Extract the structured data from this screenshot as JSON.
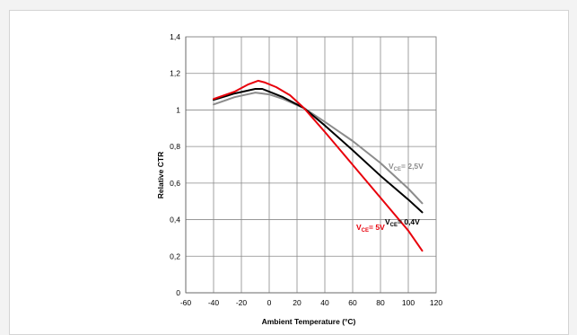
{
  "chart_data": {
    "type": "line",
    "title": "",
    "xlabel": "Ambient Temperature (°C)",
    "ylabel": "Relative CTR",
    "xlim": [
      -60,
      120
    ],
    "ylim": [
      0,
      1.4
    ],
    "x_ticks": [
      -60,
      -40,
      -20,
      0,
      20,
      40,
      60,
      80,
      100,
      120
    ],
    "x_tick_labels": [
      "-60",
      "-40",
      "-20",
      "0",
      "20",
      "40",
      "60",
      "80",
      "100",
      "120"
    ],
    "y_ticks": [
      0,
      0.2,
      0.4,
      0.6,
      0.8,
      1.0,
      1.2,
      1.4
    ],
    "y_tick_labels": [
      "0",
      "0,2",
      "0,4",
      "0,6",
      "0,8",
      "1",
      "1,2",
      "1,4"
    ],
    "grid": true,
    "legend": "none",
    "series": [
      {
        "name": "VCE= 2,5V",
        "label_main": "V",
        "label_sub": "CE",
        "label_rest": "= 2,5V",
        "color": "#8c8c8c",
        "x": [
          -40,
          -25,
          -10,
          0,
          10,
          25,
          40,
          60,
          80,
          100,
          110
        ],
        "y": [
          1.03,
          1.07,
          1.095,
          1.085,
          1.06,
          1.01,
          0.935,
          0.83,
          0.71,
          0.57,
          0.49
        ]
      },
      {
        "name": "VCE= 0,4V",
        "label_main": "V",
        "label_sub": "CE",
        "label_rest": "= 0,4V",
        "color": "#000000",
        "x": [
          -40,
          -25,
          -10,
          -5,
          0,
          10,
          25,
          40,
          60,
          80,
          100,
          110
        ],
        "y": [
          1.055,
          1.09,
          1.115,
          1.115,
          1.1,
          1.07,
          1.01,
          0.915,
          0.78,
          0.64,
          0.51,
          0.44
        ]
      },
      {
        "name": "VCE= 5V",
        "label_main": "V",
        "label_sub": "CE",
        "label_rest": "= 5V",
        "color": "#e8000b",
        "x": [
          -40,
          -25,
          -15,
          -8,
          -3,
          5,
          15,
          25,
          40,
          60,
          80,
          100,
          110
        ],
        "y": [
          1.06,
          1.1,
          1.14,
          1.16,
          1.15,
          1.125,
          1.08,
          1.01,
          0.88,
          0.7,
          0.52,
          0.34,
          0.23
        ]
      }
    ]
  }
}
